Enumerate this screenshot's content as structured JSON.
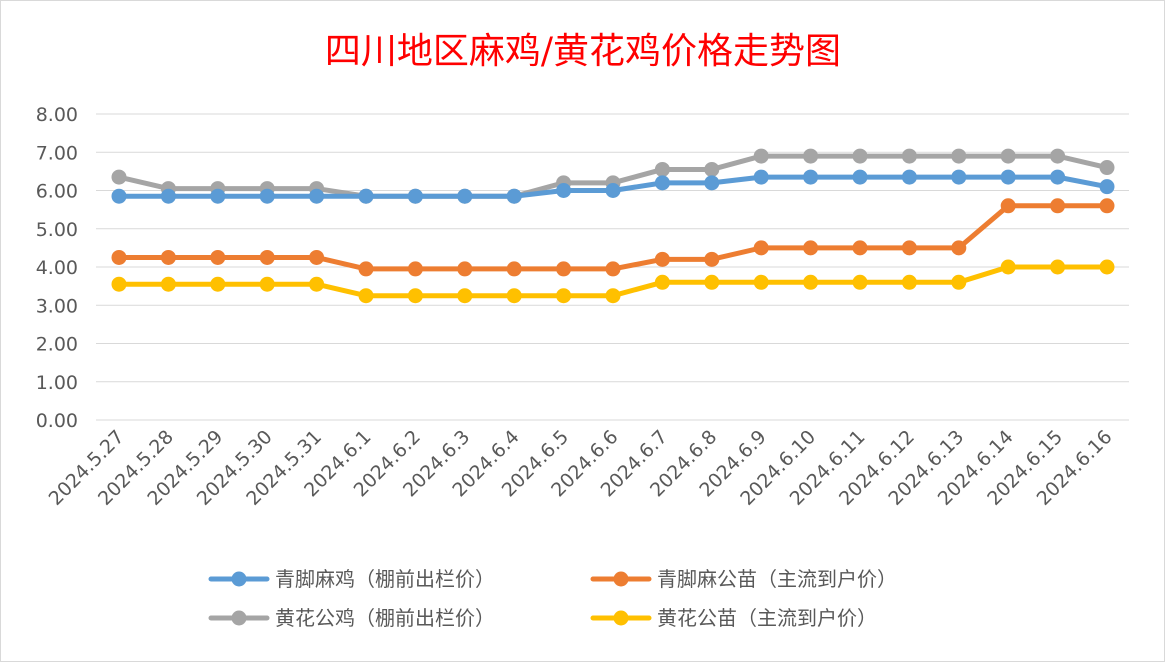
{
  "chart_data": {
    "type": "line",
    "title": "四川地区麻鸡/黄花鸡价格走势图",
    "categories": [
      "2024.5.27",
      "2024.5.28",
      "2024.5.29",
      "2024.5.30",
      "2024.5.31",
      "2024.6.1",
      "2024.6.2",
      "2024.6.3",
      "2024.6.4",
      "2024.6.5",
      "2024.6.6",
      "2024.6.7",
      "2024.6.8",
      "2024.6.9",
      "2024.6.10",
      "2024.6.11",
      "2024.6.12",
      "2024.6.13",
      "2024.6.14",
      "2024.6.15",
      "2024.6.16"
    ],
    "ylim": [
      0,
      8
    ],
    "yticks": [
      "0.00",
      "1.00",
      "2.00",
      "3.00",
      "4.00",
      "5.00",
      "6.00",
      "7.00",
      "8.00"
    ],
    "grid": true,
    "legend_position": "bottom",
    "series": [
      {
        "name": "黄花公鸡（棚前出栏价）",
        "color": "#a5a5a5",
        "values": [
          6.35,
          6.05,
          6.05,
          6.05,
          6.05,
          5.85,
          5.85,
          5.85,
          5.85,
          6.2,
          6.2,
          6.55,
          6.55,
          6.9,
          6.9,
          6.9,
          6.9,
          6.9,
          6.9,
          6.9,
          6.6
        ]
      },
      {
        "name": "青脚麻鸡（棚前出栏价）",
        "color": "#5b9bd5",
        "values": [
          5.85,
          5.85,
          5.85,
          5.85,
          5.85,
          5.85,
          5.85,
          5.85,
          5.85,
          6.0,
          6.0,
          6.2,
          6.2,
          6.35,
          6.35,
          6.35,
          6.35,
          6.35,
          6.35,
          6.35,
          6.1
        ]
      },
      {
        "name": "青脚麻公苗（主流到户价）",
        "color": "#ed7d31",
        "values": [
          4.25,
          4.25,
          4.25,
          4.25,
          4.25,
          3.95,
          3.95,
          3.95,
          3.95,
          3.95,
          3.95,
          4.2,
          4.2,
          4.5,
          4.5,
          4.5,
          4.5,
          4.5,
          5.6,
          5.6,
          5.6
        ]
      },
      {
        "name": "黄花公苗（主流到户价）",
        "color": "#ffc000",
        "values": [
          3.55,
          3.55,
          3.55,
          3.55,
          3.55,
          3.25,
          3.25,
          3.25,
          3.25,
          3.25,
          3.25,
          3.6,
          3.6,
          3.6,
          3.6,
          3.6,
          3.6,
          3.6,
          4.0,
          4.0,
          4.0
        ]
      }
    ],
    "legend": [
      {
        "series_index": 1
      },
      {
        "series_index": 2
      },
      {
        "series_index": 0
      },
      {
        "series_index": 3
      }
    ],
    "gridline_color": "#d9d9d9"
  }
}
